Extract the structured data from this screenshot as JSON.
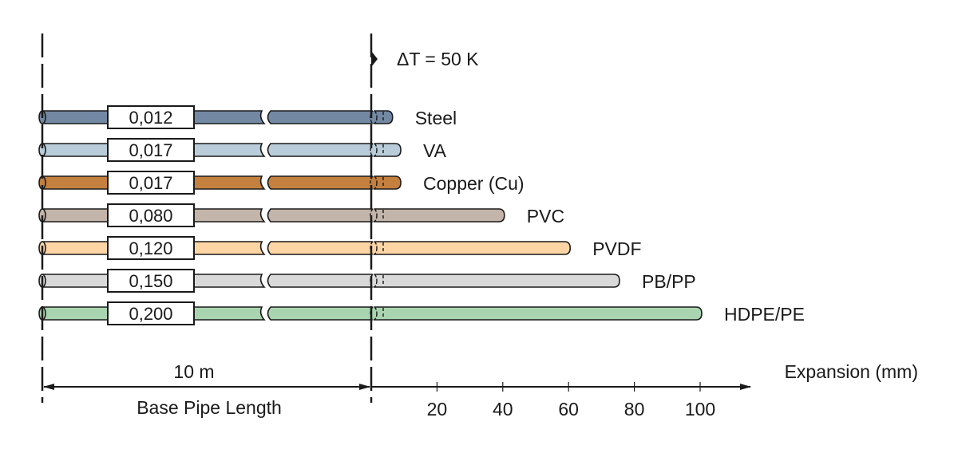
{
  "chart_data": {
    "type": "bar",
    "annotation": "ΔT = 50 K",
    "base_length_value": "10 m",
    "base_length_label": "Base Pipe Length",
    "xlabel": "Expansion (mm)",
    "xticks": [
      "20",
      "40",
      "60",
      "80",
      "100"
    ],
    "xlim": [
      0,
      110
    ],
    "series": [
      {
        "name": "Steel",
        "coefficient": "0,012",
        "expansion_mm": 6,
        "color": "#7389a3"
      },
      {
        "name": "VA",
        "coefficient": "0,017",
        "expansion_mm": 8.5,
        "color": "#b8cdd9"
      },
      {
        "name": "Copper (Cu)",
        "coefficient": "0,017",
        "expansion_mm": 8.5,
        "color": "#c4803e"
      },
      {
        "name": "PVC",
        "coefficient": "0,080",
        "expansion_mm": 40,
        "color": "#c3b5aa"
      },
      {
        "name": "PVDF",
        "coefficient": "0,120",
        "expansion_mm": 60,
        "color": "#fdd5a5"
      },
      {
        "name": "PB/PP",
        "coefficient": "0,150",
        "expansion_mm": 75,
        "color": "#d9d9d9"
      },
      {
        "name": "HDPE/PE",
        "coefficient": "0,200",
        "expansion_mm": 100,
        "color": "#a8d5b0"
      }
    ]
  }
}
